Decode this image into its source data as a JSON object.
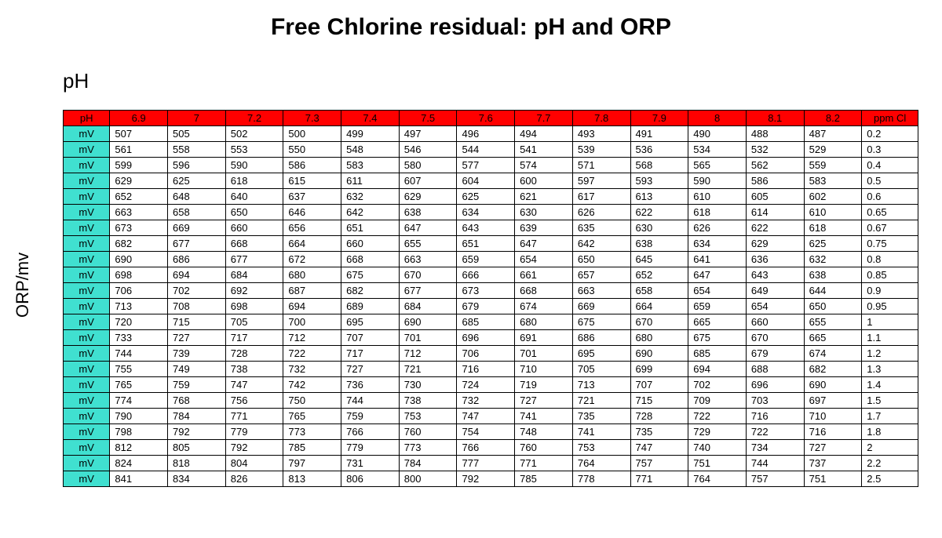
{
  "title": "Free Chlorine residual: pH and ORP",
  "ph_label": "pH",
  "y_axis_label": "ORP/mv",
  "table": {
    "type": "table",
    "header_bg": "#ff0000",
    "row_label_bg": "#40e0d0",
    "border_color": "#000000",
    "font_size": 13,
    "row_label_header": "pH",
    "ppm_header": "ppm Cl",
    "row_label": "mV",
    "ph_columns": [
      "6.9",
      "7",
      "7.2",
      "7.3",
      "7.4",
      "7.5",
      "7.6",
      "7.7",
      "7.8",
      "7.9",
      "8",
      "8.1",
      "8.2"
    ],
    "rows": [
      {
        "ppm": "0.2",
        "values": [
          507,
          505,
          502,
          500,
          499,
          497,
          496,
          494,
          493,
          491,
          490,
          488,
          487
        ]
      },
      {
        "ppm": "0.3",
        "values": [
          561,
          558,
          553,
          550,
          548,
          546,
          544,
          541,
          539,
          536,
          534,
          532,
          529
        ]
      },
      {
        "ppm": "0.4",
        "values": [
          599,
          596,
          590,
          586,
          583,
          580,
          577,
          574,
          571,
          568,
          565,
          562,
          559
        ]
      },
      {
        "ppm": "0.5",
        "values": [
          629,
          625,
          618,
          615,
          611,
          607,
          604,
          600,
          597,
          593,
          590,
          586,
          583
        ]
      },
      {
        "ppm": "0.6",
        "values": [
          652,
          648,
          640,
          637,
          632,
          629,
          625,
          621,
          617,
          613,
          610,
          605,
          602
        ]
      },
      {
        "ppm": "0.65",
        "values": [
          663,
          658,
          650,
          646,
          642,
          638,
          634,
          630,
          626,
          622,
          618,
          614,
          610
        ]
      },
      {
        "ppm": "0.67",
        "values": [
          673,
          669,
          660,
          656,
          651,
          647,
          643,
          639,
          635,
          630,
          626,
          622,
          618
        ]
      },
      {
        "ppm": "0.75",
        "values": [
          682,
          677,
          668,
          664,
          660,
          655,
          651,
          647,
          642,
          638,
          634,
          629,
          625
        ]
      },
      {
        "ppm": "0.8",
        "values": [
          690,
          686,
          677,
          672,
          668,
          663,
          659,
          654,
          650,
          645,
          641,
          636,
          632
        ]
      },
      {
        "ppm": "0.85",
        "values": [
          698,
          694,
          684,
          680,
          675,
          670,
          666,
          661,
          657,
          652,
          647,
          643,
          638
        ]
      },
      {
        "ppm": "0.9",
        "values": [
          706,
          702,
          692,
          687,
          682,
          677,
          673,
          668,
          663,
          658,
          654,
          649,
          644
        ]
      },
      {
        "ppm": "0.95",
        "values": [
          713,
          708,
          698,
          694,
          689,
          684,
          679,
          674,
          669,
          664,
          659,
          654,
          650
        ]
      },
      {
        "ppm": "1",
        "values": [
          720,
          715,
          705,
          700,
          695,
          690,
          685,
          680,
          675,
          670,
          665,
          660,
          655
        ]
      },
      {
        "ppm": "1.1",
        "values": [
          733,
          727,
          717,
          712,
          707,
          701,
          696,
          691,
          686,
          680,
          675,
          670,
          665
        ]
      },
      {
        "ppm": "1.2",
        "values": [
          744,
          739,
          728,
          722,
          717,
          712,
          706,
          701,
          695,
          690,
          685,
          679,
          674
        ]
      },
      {
        "ppm": "1.3",
        "values": [
          755,
          749,
          738,
          732,
          727,
          721,
          716,
          710,
          705,
          699,
          694,
          688,
          682
        ]
      },
      {
        "ppm": "1.4",
        "values": [
          765,
          759,
          747,
          742,
          736,
          730,
          724,
          719,
          713,
          707,
          702,
          696,
          690
        ]
      },
      {
        "ppm": "1.5",
        "values": [
          774,
          768,
          756,
          750,
          744,
          738,
          732,
          727,
          721,
          715,
          709,
          703,
          697
        ]
      },
      {
        "ppm": "1.7",
        "values": [
          790,
          784,
          771,
          765,
          759,
          753,
          747,
          741,
          735,
          728,
          722,
          716,
          710
        ]
      },
      {
        "ppm": "1.8",
        "values": [
          798,
          792,
          779,
          773,
          766,
          760,
          754,
          748,
          741,
          735,
          729,
          722,
          716
        ]
      },
      {
        "ppm": "2",
        "values": [
          812,
          805,
          792,
          785,
          779,
          773,
          766,
          760,
          753,
          747,
          740,
          734,
          727
        ]
      },
      {
        "ppm": "2.2",
        "values": [
          824,
          818,
          804,
          797,
          731,
          784,
          777,
          771,
          764,
          757,
          751,
          744,
          737
        ]
      },
      {
        "ppm": "2.5",
        "values": [
          841,
          834,
          826,
          813,
          806,
          800,
          792,
          785,
          778,
          771,
          764,
          757,
          751
        ]
      }
    ]
  }
}
